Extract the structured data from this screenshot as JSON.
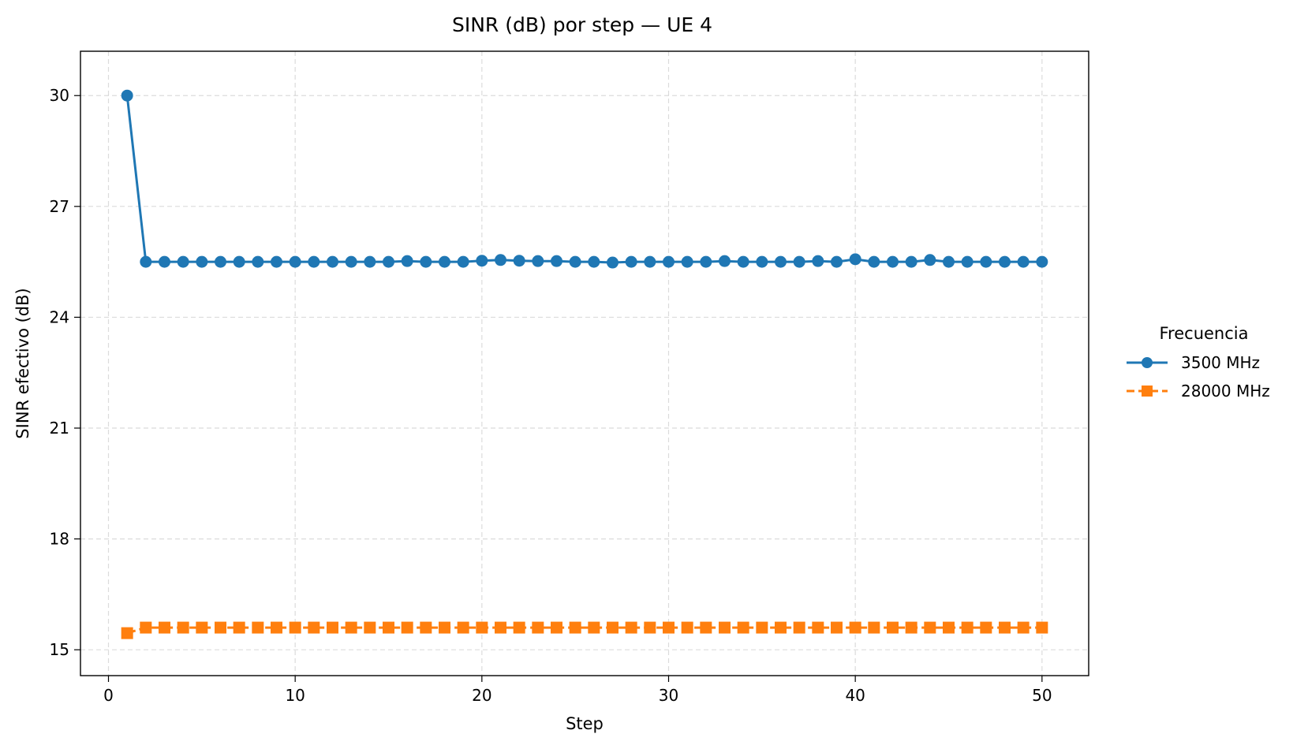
{
  "chart_data": {
    "type": "line",
    "title": "SINR (dB) por step — UE 4",
    "xlabel": "Step",
    "ylabel": "SINR efectivo (dB)",
    "xlim": [
      -1.5,
      52.5
    ],
    "ylim": [
      14.3,
      31.2
    ],
    "xticks": [
      0,
      10,
      20,
      30,
      40,
      50
    ],
    "yticks": [
      15,
      18,
      21,
      24,
      27,
      30
    ],
    "grid": true,
    "legend": {
      "title": "Frecuencia",
      "placement": "right-outside"
    },
    "x": [
      1,
      2,
      3,
      4,
      5,
      6,
      7,
      8,
      9,
      10,
      11,
      12,
      13,
      14,
      15,
      16,
      17,
      18,
      19,
      20,
      21,
      22,
      23,
      24,
      25,
      26,
      27,
      28,
      29,
      30,
      31,
      32,
      33,
      34,
      35,
      36,
      37,
      38,
      39,
      40,
      41,
      42,
      43,
      44,
      45,
      46,
      47,
      48,
      49,
      50
    ],
    "series": [
      {
        "name": "3500 MHz",
        "color": "#1f77b4",
        "marker": "circle",
        "linestyle": "solid",
        "values": [
          30.0,
          25.5,
          25.5,
          25.5,
          25.5,
          25.5,
          25.5,
          25.5,
          25.5,
          25.5,
          25.5,
          25.5,
          25.5,
          25.5,
          25.5,
          25.52,
          25.5,
          25.5,
          25.5,
          25.53,
          25.55,
          25.53,
          25.52,
          25.52,
          25.5,
          25.5,
          25.48,
          25.5,
          25.5,
          25.5,
          25.5,
          25.5,
          25.52,
          25.5,
          25.5,
          25.5,
          25.5,
          25.52,
          25.5,
          25.57,
          25.5,
          25.5,
          25.5,
          25.55,
          25.5,
          25.5,
          25.5,
          25.5,
          25.5,
          25.5
        ]
      },
      {
        "name": "28000 MHz",
        "color": "#ff7f0e",
        "marker": "square",
        "linestyle": "dashed",
        "values": [
          15.45,
          15.6,
          15.6,
          15.6,
          15.6,
          15.6,
          15.6,
          15.6,
          15.6,
          15.6,
          15.6,
          15.6,
          15.6,
          15.6,
          15.6,
          15.6,
          15.6,
          15.6,
          15.6,
          15.6,
          15.6,
          15.6,
          15.6,
          15.6,
          15.6,
          15.6,
          15.6,
          15.6,
          15.6,
          15.6,
          15.6,
          15.6,
          15.6,
          15.6,
          15.6,
          15.6,
          15.6,
          15.6,
          15.6,
          15.6,
          15.6,
          15.6,
          15.6,
          15.6,
          15.6,
          15.6,
          15.6,
          15.6,
          15.6,
          15.6
        ]
      }
    ]
  }
}
